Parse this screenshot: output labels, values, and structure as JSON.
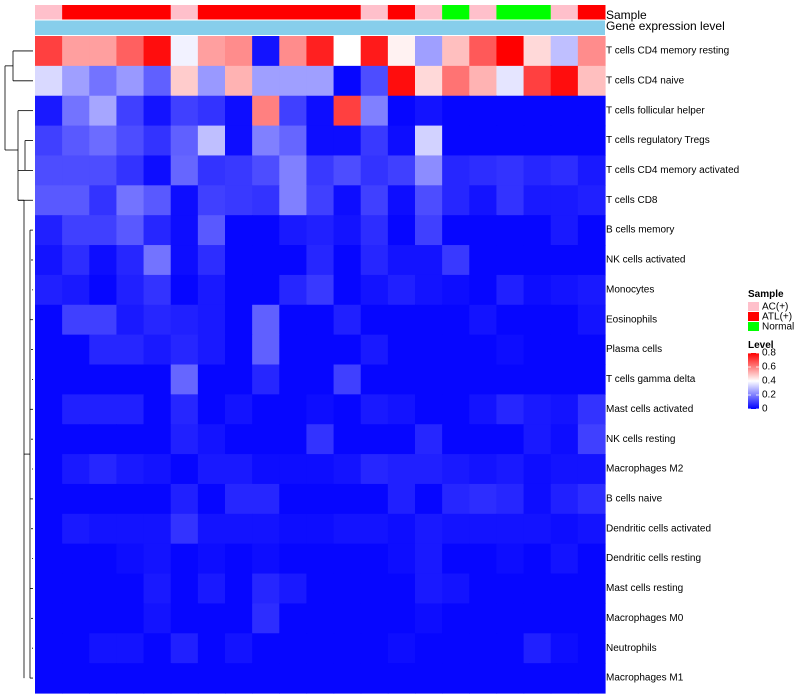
{
  "chart_data": {
    "type": "heatmap",
    "title": "",
    "colors": {
      "high": "#ff0000",
      "mid": "#ffffff",
      "low": "#0000ff",
      "gene_expression_bar": "#87ceeb"
    },
    "annotation_rows": [
      "Sample",
      "Gene expression level"
    ],
    "sample_groups": [
      "AC(+)",
      "ATL(+)",
      "ATL(+)",
      "ATL(+)",
      "ATL(+)",
      "AC(+)",
      "ATL(+)",
      "ATL(+)",
      "ATL(+)",
      "ATL(+)",
      "ATL(+)",
      "ATL(+)",
      "AC(+)",
      "ATL(+)",
      "AC(+)",
      "Normal",
      "AC(+)",
      "Normal",
      "Normal",
      "AC(+)",
      "ATL(+)"
    ],
    "rows": [
      "T cells CD4 memory resting",
      "T cells CD4 naive",
      "T cells follicular helper",
      "T cells regulatory  Tregs",
      "T cells CD4 memory activated",
      "T cells CD8",
      "B cells memory",
      "NK cells activated",
      "Monocytes",
      "Eosinophils",
      "Plasma cells",
      "T cells gamma delta",
      "Mast cells activated",
      "NK cells resting",
      "Macrophages M2",
      "B cells naive",
      "Dendritic cells activated",
      "Dendritic cells resting",
      "Mast cells resting",
      "Macrophages M0",
      "Neutrophils",
      "Macrophages M1"
    ],
    "values": [
      [
        0.7,
        0.55,
        0.55,
        0.65,
        0.78,
        0.38,
        0.55,
        0.58,
        0.03,
        0.58,
        0.75,
        0.4,
        0.76,
        0.42,
        0.25,
        0.5,
        0.66,
        0.8,
        0.46,
        0.3,
        0.58
      ],
      [
        0.34,
        0.25,
        0.18,
        0.24,
        0.15,
        0.48,
        0.24,
        0.52,
        0.25,
        0.25,
        0.25,
        0.01,
        0.12,
        0.78,
        0.46,
        0.62,
        0.52,
        0.36,
        0.7,
        0.78,
        0.5
      ],
      [
        0.04,
        0.18,
        0.26,
        0.1,
        0.03,
        0.1,
        0.08,
        0.02,
        0.6,
        0.1,
        0.02,
        0.7,
        0.2,
        0.01,
        0.03,
        0.01,
        0.01,
        0.01,
        0.01,
        0.01,
        0.01
      ],
      [
        0.1,
        0.14,
        0.17,
        0.12,
        0.08,
        0.15,
        0.3,
        0.02,
        0.2,
        0.16,
        0.02,
        0.02,
        0.09,
        0.02,
        0.33,
        0.01,
        0.01,
        0.01,
        0.01,
        0.01,
        0.01
      ],
      [
        0.12,
        0.12,
        0.12,
        0.08,
        0.02,
        0.16,
        0.08,
        0.09,
        0.12,
        0.2,
        0.09,
        0.12,
        0.08,
        0.1,
        0.22,
        0.06,
        0.07,
        0.08,
        0.06,
        0.07,
        0.04
      ],
      [
        0.14,
        0.14,
        0.08,
        0.18,
        0.14,
        0.02,
        0.1,
        0.09,
        0.08,
        0.2,
        0.1,
        0.02,
        0.1,
        0.02,
        0.12,
        0.06,
        0.03,
        0.08,
        0.04,
        0.04,
        0.05
      ],
      [
        0.05,
        0.1,
        0.1,
        0.14,
        0.06,
        0.02,
        0.14,
        0.01,
        0.01,
        0.04,
        0.05,
        0.03,
        0.07,
        0.01,
        0.1,
        0.01,
        0.01,
        0.01,
        0.01,
        0.04,
        0.01
      ],
      [
        0.03,
        0.07,
        0.02,
        0.06,
        0.18,
        0.02,
        0.07,
        0.01,
        0.01,
        0.01,
        0.06,
        0.01,
        0.06,
        0.03,
        0.03,
        0.09,
        0.01,
        0.01,
        0.01,
        0.01,
        0.01
      ],
      [
        0.05,
        0.04,
        0.01,
        0.05,
        0.08,
        0.01,
        0.04,
        0.01,
        0.01,
        0.06,
        0.09,
        0.01,
        0.03,
        0.05,
        0.03,
        0.02,
        0.01,
        0.05,
        0.02,
        0.03,
        0.04
      ],
      [
        0.01,
        0.1,
        0.1,
        0.04,
        0.06,
        0.05,
        0.04,
        0.01,
        0.15,
        0.01,
        0.01,
        0.05,
        0.01,
        0.01,
        0.01,
        0.01,
        0.03,
        0.01,
        0.01,
        0.01,
        0.03
      ],
      [
        0.01,
        0.01,
        0.06,
        0.06,
        0.04,
        0.06,
        0.04,
        0.01,
        0.15,
        0.01,
        0.01,
        0.01,
        0.04,
        0.01,
        0.01,
        0.01,
        0.01,
        0.02,
        0.01,
        0.01,
        0.01
      ],
      [
        0.01,
        0.01,
        0.01,
        0.01,
        0.01,
        0.16,
        0.01,
        0.01,
        0.06,
        0.01,
        0.01,
        0.1,
        0.01,
        0.01,
        0.01,
        0.01,
        0.01,
        0.01,
        0.01,
        0.01,
        0.01
      ],
      [
        0.01,
        0.05,
        0.05,
        0.05,
        0.01,
        0.06,
        0.01,
        0.03,
        0.01,
        0.01,
        0.02,
        0.01,
        0.04,
        0.03,
        0.01,
        0.01,
        0.03,
        0.06,
        0.04,
        0.03,
        0.08
      ],
      [
        0.01,
        0.01,
        0.01,
        0.01,
        0.01,
        0.05,
        0.03,
        0.01,
        0.01,
        0.01,
        0.08,
        0.01,
        0.01,
        0.01,
        0.06,
        0.01,
        0.01,
        0.01,
        0.04,
        0.02,
        0.1
      ],
      [
        0.01,
        0.04,
        0.06,
        0.04,
        0.03,
        0.01,
        0.04,
        0.04,
        0.02,
        0.02,
        0.02,
        0.03,
        0.06,
        0.05,
        0.05,
        0.04,
        0.03,
        0.04,
        0.02,
        0.03,
        0.03
      ],
      [
        0.01,
        0.01,
        0.01,
        0.01,
        0.01,
        0.05,
        0.01,
        0.06,
        0.06,
        0.01,
        0.01,
        0.01,
        0.01,
        0.05,
        0.01,
        0.06,
        0.07,
        0.06,
        0.02,
        0.05,
        0.07
      ],
      [
        0.01,
        0.04,
        0.03,
        0.03,
        0.03,
        0.08,
        0.03,
        0.03,
        0.03,
        0.02,
        0.02,
        0.03,
        0.03,
        0.02,
        0.04,
        0.03,
        0.03,
        0.03,
        0.03,
        0.02,
        0.03
      ],
      [
        0.01,
        0.01,
        0.01,
        0.02,
        0.03,
        0.01,
        0.02,
        0.01,
        0.02,
        0.01,
        0.01,
        0.01,
        0.01,
        0.02,
        0.04,
        0.01,
        0.01,
        0.02,
        0.01,
        0.03,
        0.01
      ],
      [
        0.01,
        0.01,
        0.01,
        0.01,
        0.04,
        0.01,
        0.04,
        0.01,
        0.06,
        0.04,
        0.01,
        0.01,
        0.01,
        0.01,
        0.04,
        0.03,
        0.01,
        0.01,
        0.01,
        0.01,
        0.01
      ],
      [
        0.01,
        0.01,
        0.01,
        0.01,
        0.03,
        0.01,
        0.01,
        0.01,
        0.07,
        0.01,
        0.01,
        0.01,
        0.01,
        0.01,
        0.02,
        0.01,
        0.01,
        0.01,
        0.01,
        0.01,
        0.01
      ],
      [
        0.01,
        0.01,
        0.03,
        0.03,
        0.01,
        0.05,
        0.01,
        0.03,
        0.01,
        0.01,
        0.01,
        0.01,
        0.01,
        0.02,
        0.01,
        0.01,
        0.01,
        0.01,
        0.05,
        0.02,
        0.01
      ],
      [
        0.01,
        0.01,
        0.01,
        0.01,
        0.01,
        0.01,
        0.01,
        0.01,
        0.01,
        0.01,
        0.01,
        0.01,
        0.01,
        0.01,
        0.01,
        0.01,
        0.01,
        0.01,
        0.01,
        0.01,
        0.01
      ]
    ],
    "legend": {
      "sample_title": "Sample",
      "sample_items": [
        {
          "label": "AC(+)",
          "color": "#ffc0cb"
        },
        {
          "label": "ATL(+)",
          "color": "#ff0000"
        },
        {
          "label": "Normal",
          "color": "#00ff00"
        }
      ],
      "level_title": "Level",
      "level_ticks": [
        0.8,
        0.6,
        0.4,
        0.2,
        0
      ],
      "level_range": [
        0,
        0.8
      ]
    }
  }
}
